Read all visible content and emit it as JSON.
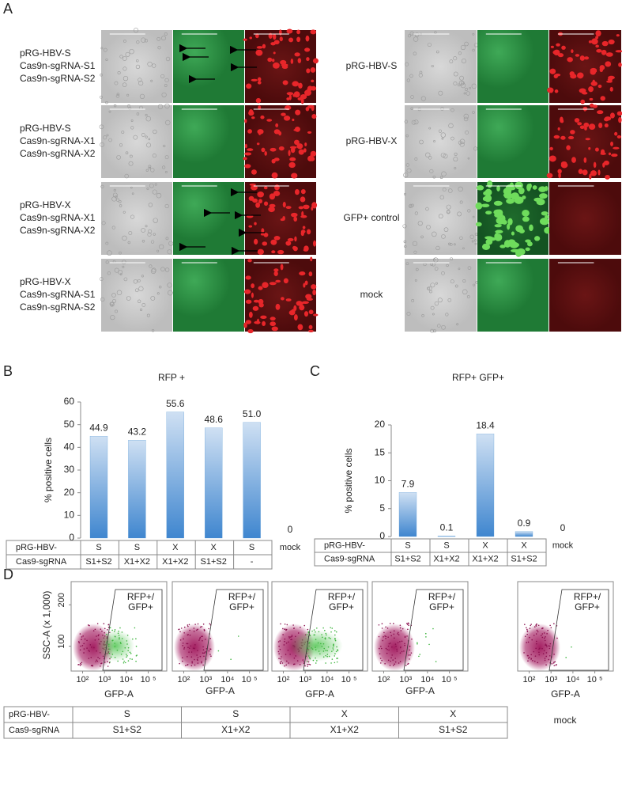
{
  "panel_labels": [
    "A",
    "B",
    "C",
    "D"
  ],
  "panel_a": {
    "left": [
      [
        "pRG-HBV-S",
        "Cas9n-sgRNA-S1",
        "Cas9n-sgRNA-S2"
      ],
      [
        "pRG-HBV-S",
        "Cas9n-sgRNA-X1",
        "Cas9n-sgRNA-X2"
      ],
      [
        "pRG-HBV-X",
        "Cas9n-sgRNA-X1",
        "Cas9n-sgRNA-X2"
      ],
      [
        "pRG-HBV-X",
        "Cas9n-sgRNA-S1",
        "Cas9n-sgRNA-S2"
      ]
    ],
    "right": [
      "pRG-HBV-S",
      "pRG-HBV-X",
      "GFP+ control",
      "mock"
    ]
  },
  "chart_data": [
    {
      "type": "bar",
      "title": "RFP +",
      "y_label": "% positive cells",
      "row_labels": [
        "pRG-HBV-",
        "Cas9-sgRNA"
      ],
      "categories": [
        "S",
        "S",
        "X",
        "X",
        "S",
        "mock"
      ],
      "sgrna": [
        "S1+S2",
        "X1+X2",
        "X1+X2",
        "S1+S2",
        "-",
        null
      ],
      "values": [
        44.9,
        43.2,
        55.6,
        48.6,
        51.0,
        0
      ],
      "value_labels": [
        "44.9",
        "43.2",
        "55.6",
        "48.6",
        "51.0",
        "0"
      ],
      "color": "#5b9bd5",
      "ylim": [
        0,
        60
      ],
      "yticks": [
        0,
        10,
        20,
        30,
        40,
        50,
        60
      ]
    },
    {
      "type": "bar",
      "title": "RFP+ GFP+",
      "y_label": "% positive cells",
      "row_labels": [
        "pRG-HBV-",
        "Cas9-sgRNA"
      ],
      "categories": [
        "S",
        "S",
        "X",
        "X",
        "mock"
      ],
      "sgrna": [
        "S1+S2",
        "X1+X2",
        "X1+X2",
        "S1+S2",
        null
      ],
      "values": [
        7.9,
        0.1,
        18.4,
        0.9,
        0
      ],
      "color": "#5b9bd5",
      "ylim": [
        0,
        20
      ],
      "yticks": [
        0,
        5,
        10,
        15,
        20
      ]
    }
  ],
  "panel_d": {
    "y_label": "SSC-A  (x 1,000)",
    "x_label": "GFP-A",
    "gate_label": [
      "RFP+/",
      "GFP+"
    ],
    "xscale": "log",
    "xlim": [
      30,
      700000
    ],
    "xticks": [
      {
        "value": 100,
        "label": "10²"
      },
      {
        "value": 1000,
        "label": "10³"
      },
      {
        "value": 10000,
        "label": "10⁴"
      },
      {
        "value": 100000,
        "label": "10 ⁵"
      }
    ],
    "ylim": [
      40,
      256
    ],
    "yticks": [
      100,
      200
    ],
    "row_labels": [
      "pRG-HBV-",
      "Cas9-sgRNA"
    ],
    "plasmid": [
      "S",
      "S",
      "X",
      "X"
    ],
    "sgrna": [
      "S1+S2",
      "X1+X2",
      "X1+X2",
      "S1+S2"
    ],
    "mock": "mock"
  }
}
